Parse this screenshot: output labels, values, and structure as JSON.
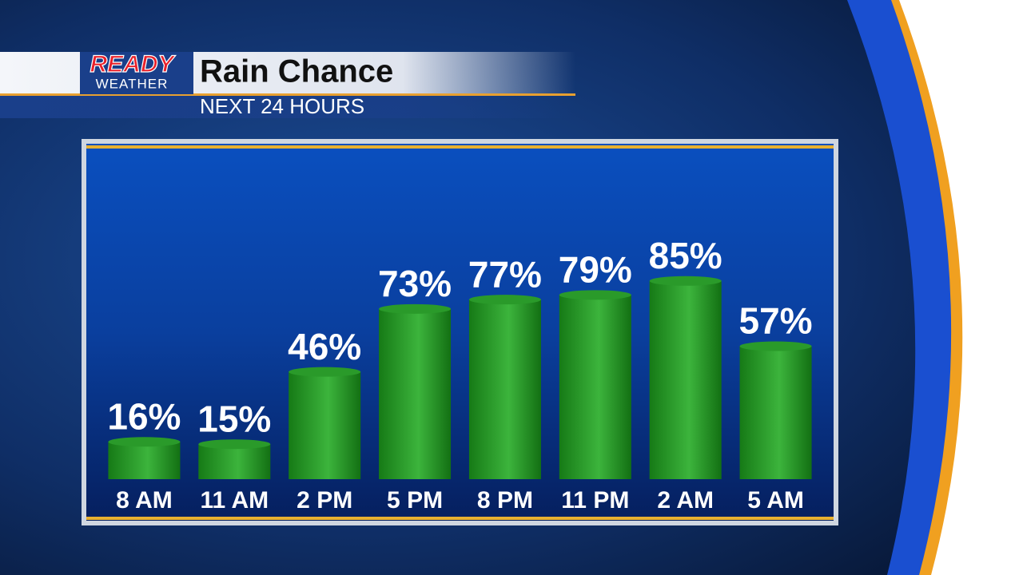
{
  "chart_data": {
    "type": "bar",
    "logo": {
      "top": "READY",
      "bottom": "WEATHER"
    },
    "title": "Rain Chance",
    "subtitle": "NEXT 24 HOURS",
    "categories": [
      "8 AM",
      "11 AM",
      "2 PM",
      "5 PM",
      "8 PM",
      "11 PM",
      "2 AM",
      "5 AM"
    ],
    "values": [
      16,
      15,
      46,
      73,
      77,
      79,
      85,
      57
    ],
    "value_labels": [
      "16%",
      "15%",
      "46%",
      "73%",
      "77%",
      "79%",
      "85%",
      "57%"
    ],
    "color": "#2a9a2a"
  }
}
